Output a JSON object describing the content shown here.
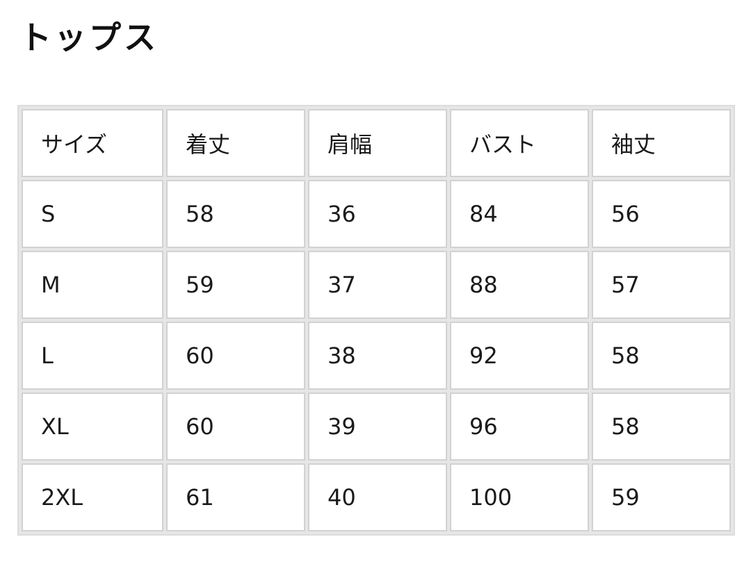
{
  "title": "トップス",
  "table": {
    "headers": [
      "サイズ",
      "着丈",
      "肩幅",
      "バスト",
      "袖丈"
    ],
    "rows": [
      [
        "S",
        "58",
        "36",
        "84",
        "56"
      ],
      [
        "M",
        "59",
        "37",
        "88",
        "57"
      ],
      [
        "L",
        "60",
        "38",
        "92",
        "58"
      ],
      [
        "XL",
        "60",
        "39",
        "96",
        "58"
      ],
      [
        "2XL",
        "61",
        "40",
        "100",
        "59"
      ]
    ]
  }
}
